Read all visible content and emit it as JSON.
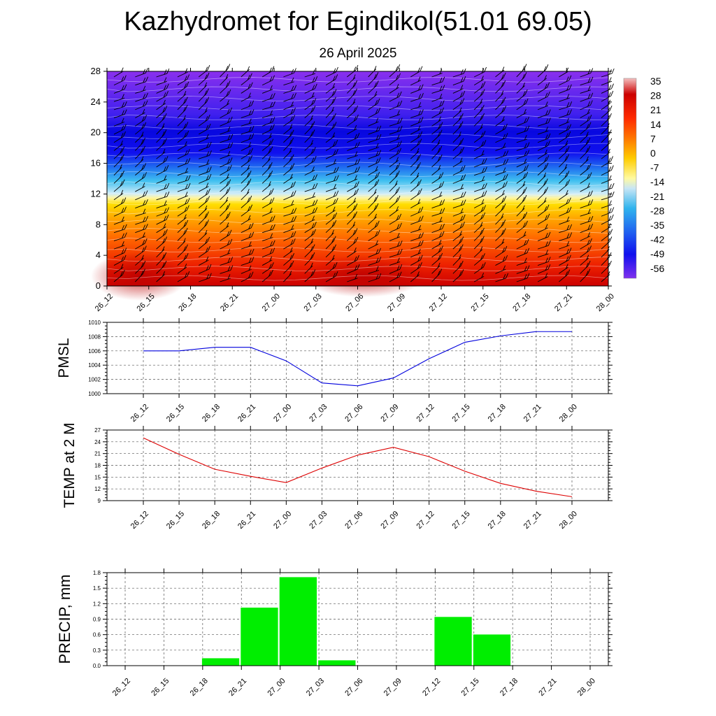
{
  "title": "Kazhydromet for Egindikol(51.01 69.05)",
  "subtitle": "26 April 2025",
  "colors": {
    "pmsl_line": "#0000dd",
    "temp_line": "#dd0000",
    "precip_bar": "#00ee00",
    "colorbar_stops": [
      "#f0b0b0",
      "#cc0000",
      "#ff2200",
      "#ff7700",
      "#ffdd00",
      "#fffaa0",
      "#c8e6f5",
      "#30b4ee",
      "#2060f0",
      "#1010ee",
      "#8030ee"
    ]
  },
  "chart_data": [
    {
      "type": "heatmap",
      "description_note": "",
      "x_tick_labels": [
        "26_12",
        "26_15",
        "26_18",
        "26_21",
        "27_00",
        "27_03",
        "27_06",
        "27_09",
        "27_12",
        "27_15",
        "27_18",
        "27_21",
        "28_00"
      ],
      "y_tick_labels": [
        "0",
        "4",
        "8",
        "12",
        "16",
        "20",
        "24",
        "28"
      ],
      "ylim": [
        0,
        28
      ],
      "colorbar_labels": [
        "35",
        "28",
        "21",
        "14",
        "7",
        "0",
        "-7",
        "-14",
        "-21",
        "-28",
        "-35",
        "-42",
        "-49",
        "-56"
      ]
    },
    {
      "type": "line",
      "ylabel": "PMSL",
      "categories": [
        "26_12",
        "26_15",
        "26_18",
        "26_21",
        "27_00",
        "27_03",
        "27_06",
        "27_09",
        "27_12",
        "27_15",
        "27_18",
        "27_21",
        "28_00"
      ],
      "values": [
        1006.0,
        1006.0,
        1006.5,
        1006.5,
        1004.6,
        1001.5,
        1001.1,
        1002.2,
        1004.9,
        1007.2,
        1008.1,
        1008.7,
        1008.7
      ],
      "ylim": [
        1000,
        1010
      ],
      "y_ticks": [
        "1000",
        "1002",
        "1004",
        "1006",
        "1008",
        "1010"
      ]
    },
    {
      "type": "line",
      "ylabel": "TEMP at 2 M",
      "categories": [
        "26_12",
        "26_15",
        "26_18",
        "26_21",
        "27_00",
        "27_03",
        "27_06",
        "27_09",
        "27_12",
        "27_15",
        "27_18",
        "27_21",
        "28_00"
      ],
      "values": [
        25.0,
        20.8,
        17.0,
        15.2,
        13.6,
        17.3,
        20.6,
        22.6,
        20.2,
        16.5,
        13.4,
        11.4,
        10.0
      ],
      "ylim": [
        9,
        27
      ],
      "y_ticks": [
        "9",
        "12",
        "15",
        "18",
        "21",
        "24",
        "27"
      ]
    },
    {
      "type": "bar",
      "ylabel": "PRECIP, mm",
      "categories": [
        "26_12",
        "26_15",
        "26_18",
        "26_21",
        "27_00",
        "27_03",
        "27_06",
        "27_09",
        "27_12",
        "27_15",
        "27_18",
        "27_21",
        "28_00"
      ],
      "values": [
        0,
        0,
        0.15,
        1.13,
        1.72,
        0.11,
        0,
        0,
        0.95,
        0.61,
        0,
        0,
        0
      ],
      "ylim": [
        0,
        1.8
      ],
      "y_ticks": [
        "0.0",
        "0.3",
        "0.6",
        "0.9",
        "1.2",
        "1.5",
        "1.8"
      ]
    }
  ]
}
